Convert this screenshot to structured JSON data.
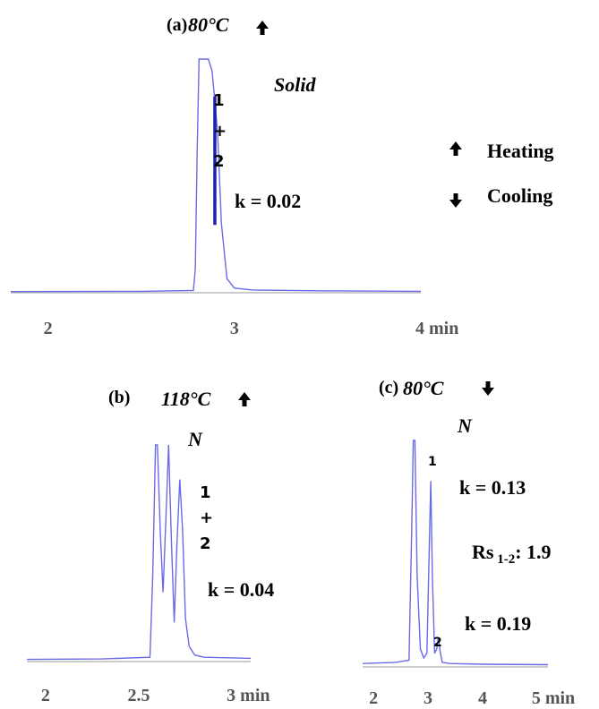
{
  "legend": {
    "heating_label": "Heating",
    "cooling_label": "Cooling",
    "heating_icon": "arrow-up-icon",
    "cooling_icon": "arrow-down-icon"
  },
  "chart_data": [
    {
      "type": "line",
      "panel": "(a)",
      "temperature": "80°C",
      "mode": "heating",
      "phase": "Solid",
      "x_unit": "min",
      "xlim": [
        1.8,
        4.0
      ],
      "xticks": [
        "2",
        "3",
        "4 min"
      ],
      "xtick_values": [
        2,
        3,
        4
      ],
      "ylim": [
        0,
        100
      ],
      "peak_label": [
        "1",
        "+",
        "2"
      ],
      "annotations": [
        "k = 0.02"
      ],
      "line_color": "#6a6ae8",
      "marker_color": "#1f1fb0",
      "x": [
        1.8,
        2.5,
        2.78,
        2.79,
        2.8,
        2.81,
        2.83,
        2.86,
        2.88,
        2.895,
        2.91,
        2.93,
        2.96,
        3.0,
        3.1,
        3.5,
        4.0
      ],
      "y": [
        0.5,
        0.6,
        1.0,
        10,
        60,
        100,
        100,
        100,
        95,
        82,
        68,
        30,
        6,
        2,
        1.2,
        0.8,
        0.6
      ]
    },
    {
      "type": "line",
      "panel": "(b)",
      "temperature": "118°C",
      "mode": "heating",
      "phase": "N",
      "x_unit": "min",
      "xlim": [
        1.9,
        3.1
      ],
      "xticks": [
        "2",
        "2.5",
        "3 min"
      ],
      "xtick_values": [
        2,
        2.5,
        3
      ],
      "ylim": [
        0,
        100
      ],
      "peak_label": [
        "1",
        "+",
        "2"
      ],
      "annotations": [
        "k = 0.04"
      ],
      "line_color": "#6a6ae8",
      "x": [
        1.9,
        2.3,
        2.56,
        2.575,
        2.59,
        2.6,
        2.615,
        2.63,
        2.645,
        2.66,
        2.675,
        2.69,
        2.705,
        2.72,
        2.735,
        2.75,
        2.77,
        2.8,
        2.85,
        3.1
      ],
      "y": [
        1.0,
        1.2,
        2,
        40,
        100,
        100,
        60,
        32,
        65,
        100,
        55,
        18,
        55,
        84,
        60,
        20,
        7,
        3,
        2,
        1.5
      ]
    },
    {
      "type": "line",
      "panel": "(c)",
      "temperature": "80°C",
      "mode": "cooling",
      "phase": "N",
      "x_unit": "min",
      "xlim": [
        1.8,
        5.2
      ],
      "xticks": [
        "2",
        "3",
        "4",
        "5 min"
      ],
      "xtick_values": [
        2,
        3,
        4,
        5
      ],
      "ylim": [
        0,
        100
      ],
      "peak_labels": [
        {
          "text": "1",
          "x": 3.05
        },
        {
          "text": "2",
          "x": 3.2
        }
      ],
      "annotations": [
        "k = 0.13",
        "Rs 1-2: 1.9",
        "k = 0.19"
      ],
      "line_color": "#6a6ae8",
      "x": [
        1.8,
        2.4,
        2.65,
        2.7,
        2.73,
        2.76,
        2.8,
        2.86,
        2.92,
        2.98,
        3.02,
        3.05,
        3.08,
        3.12,
        3.16,
        3.19,
        3.22,
        3.26,
        3.4,
        4.0,
        5.2
      ],
      "y": [
        1.5,
        2,
        3,
        60,
        100,
        100,
        40,
        8,
        4,
        6,
        50,
        82,
        40,
        6,
        8,
        13,
        7,
        2,
        1.5,
        1.2,
        1.0
      ]
    }
  ]
}
